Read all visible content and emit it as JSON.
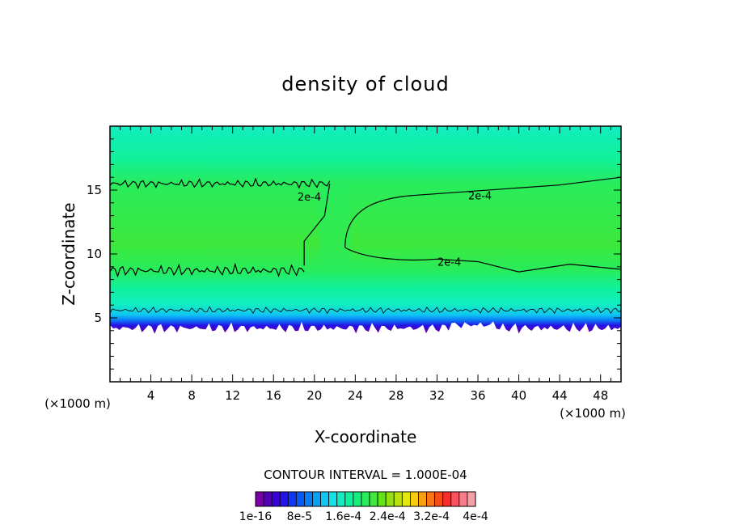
{
  "chart_data": {
    "type": "heatmap",
    "title": "density of cloud",
    "xlabel": "X-coordinate",
    "ylabel": "Z-coordinate",
    "x_unit": "(×1000 m)",
    "z_unit": "(×1000 m)",
    "xlim": [
      0,
      50
    ],
    "ylim": [
      0,
      20
    ],
    "x_ticks": [
      4,
      8,
      12,
      16,
      20,
      24,
      28,
      32,
      36,
      40,
      44,
      48
    ],
    "y_ticks": [
      5,
      10,
      15
    ],
    "contour_interval_text": "CONTOUR INTERVAL = 1.000E-04",
    "contour_line_label": "2e-4",
    "contour_line_value": 0.0002,
    "colorbar": {
      "labels": [
        "1e-16",
        "8e-5",
        "1.6e-4",
        "2.4e-4",
        "3.2e-4",
        "4e-4"
      ],
      "colors": [
        "#7a00a8",
        "#5400b4",
        "#3a00d8",
        "#2414e8",
        "#1038f0",
        "#0a58f4",
        "#0a7cf6",
        "#0aa0f4",
        "#10c6f2",
        "#14e2e6",
        "#12eec0",
        "#10f09c",
        "#14ee7c",
        "#28ec5c",
        "#3ee83c",
        "#62e418",
        "#94e010",
        "#bce20e",
        "#e2e80e",
        "#f8cc10",
        "#f8a014",
        "#f87416",
        "#f84c16",
        "#f82e2e",
        "#f85460",
        "#f87c8a",
        "#f6a0a8"
      ]
    },
    "field": {
      "cloud_base_km": 4.2,
      "cloud_top_km": 20,
      "contour_2e4_lower_km": 8.7,
      "contour_2e4_upper_km": 15.5,
      "inner_contour_x_range": [
        23,
        50
      ],
      "peak_density": 0.00025
    }
  }
}
